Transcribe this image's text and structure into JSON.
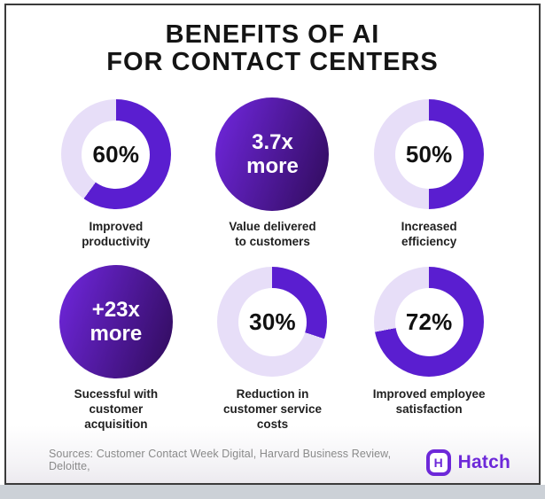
{
  "title": "BENEFITS OF AI\nFOR CONTACT CENTERS",
  "colors": {
    "purple": "#5a1ed0",
    "lavender": "#e7def8",
    "gradient_start": "#7127e0",
    "gradient_end": "#2f0b59",
    "brand": "#6d28d9"
  },
  "chart_data": [
    {
      "type": "pie",
      "kind": "donut",
      "value": 60,
      "label_value": "60%",
      "caption": "Improved\nproductivity"
    },
    {
      "type": "pie",
      "kind": "filled",
      "value": 100,
      "label_value": "3.7x\nmore",
      "caption": "Value delivered\nto customers"
    },
    {
      "type": "pie",
      "kind": "donut",
      "value": 50,
      "label_value": "50%",
      "caption": "Increased\nefficiency"
    },
    {
      "type": "pie",
      "kind": "filled",
      "value": 100,
      "label_value": "+23x\nmore",
      "caption": "Sucessful with\ncustomer\nacquisition"
    },
    {
      "type": "pie",
      "kind": "donut",
      "value": 30,
      "label_value": "30%",
      "caption": "Reduction in\ncustomer service\ncosts"
    },
    {
      "type": "pie",
      "kind": "donut",
      "value": 72,
      "label_value": "72%",
      "caption": "Improved employee\nsatisfaction"
    }
  ],
  "footer": {
    "sources": "Sources: Customer Contact Week Digital, Harvard Business Review, Deloitte,",
    "brand_initial": "H",
    "brand_name": "Hatch"
  }
}
